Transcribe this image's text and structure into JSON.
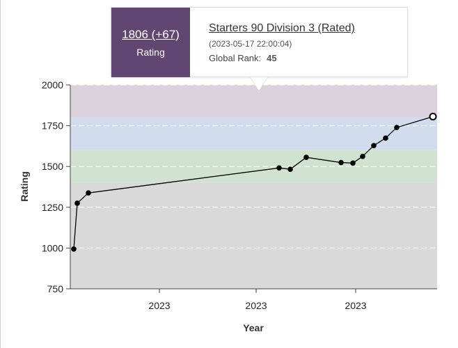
{
  "tooltip": {
    "rating": "1806 (+67)",
    "rating_label": "Rating",
    "contest_name": "Starters 90 Division 3 (Rated)",
    "date": "(2023-05-17 22:00:04)",
    "rank_label": "Global Rank:",
    "rank_value": "45"
  },
  "chart_data": {
    "type": "line",
    "title": "",
    "xlabel": "Year",
    "ylabel": "Rating",
    "ylim": [
      750,
      2000
    ],
    "y_ticks": [
      "750",
      "1000",
      "1250",
      "1500",
      "1750",
      "2000"
    ],
    "x_ticks": [
      "2023",
      "2023",
      "2023"
    ],
    "grid": "horizontal dashed",
    "bands": [
      {
        "from": 750,
        "to": 1400,
        "color": "#d9d9d9"
      },
      {
        "from": 1400,
        "to": 1600,
        "color": "#d0e3d0"
      },
      {
        "from": 1600,
        "to": 1800,
        "color": "#d2dcef"
      },
      {
        "from": 1800,
        "to": 2000,
        "color": "#dbd1dc"
      }
    ],
    "line_color": "#000000",
    "series": [
      {
        "values": [
          994,
          1275,
          1338,
          1491,
          1483,
          1556,
          1524,
          1521,
          1562,
          1628,
          1674,
          1739,
          1806
        ]
      }
    ],
    "highlighted_point_value": 1806
  }
}
